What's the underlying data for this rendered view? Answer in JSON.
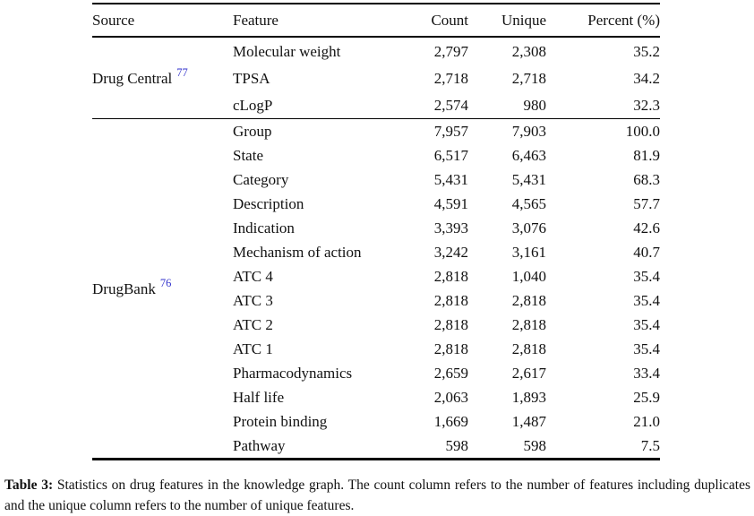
{
  "colors": {
    "background": "#ffffff",
    "text": "#111111",
    "rule": "#000000",
    "citation_link": "#3333cc"
  },
  "table": {
    "headers": {
      "source": "Source",
      "feature": "Feature",
      "count": "Count",
      "unique": "Unique",
      "percent": "Percent (%)"
    },
    "groups": [
      {
        "source": "Drug Central",
        "ref": "77",
        "rows": [
          {
            "feature": "Molecular weight",
            "count": "2,797",
            "unique": "2,308",
            "percent": "35.2"
          },
          {
            "feature": "TPSA",
            "count": "2,718",
            "unique": "2,718",
            "percent": "34.2"
          },
          {
            "feature": "cLogP",
            "count": "2,574",
            "unique": "980",
            "percent": "32.3"
          }
        ]
      },
      {
        "source": "DrugBank",
        "ref": "76",
        "rows": [
          {
            "feature": "Group",
            "count": "7,957",
            "unique": "7,903",
            "percent": "100.0"
          },
          {
            "feature": "State",
            "count": "6,517",
            "unique": "6,463",
            "percent": "81.9"
          },
          {
            "feature": "Category",
            "count": "5,431",
            "unique": "5,431",
            "percent": "68.3"
          },
          {
            "feature": "Description",
            "count": "4,591",
            "unique": "4,565",
            "percent": "57.7"
          },
          {
            "feature": "Indication",
            "count": "3,393",
            "unique": "3,076",
            "percent": "42.6"
          },
          {
            "feature": "Mechanism of action",
            "count": "3,242",
            "unique": "3,161",
            "percent": "40.7"
          },
          {
            "feature": "ATC 4",
            "count": "2,818",
            "unique": "1,040",
            "percent": "35.4"
          },
          {
            "feature": "ATC 3",
            "count": "2,818",
            "unique": "2,818",
            "percent": "35.4"
          },
          {
            "feature": "ATC 2",
            "count": "2,818",
            "unique": "2,818",
            "percent": "35.4"
          },
          {
            "feature": "ATC 1",
            "count": "2,818",
            "unique": "2,818",
            "percent": "35.4"
          },
          {
            "feature": "Pharmacodynamics",
            "count": "2,659",
            "unique": "2,617",
            "percent": "33.4"
          },
          {
            "feature": "Half life",
            "count": "2,063",
            "unique": "1,893",
            "percent": "25.9"
          },
          {
            "feature": "Protein binding",
            "count": "1,669",
            "unique": "1,487",
            "percent": "21.0"
          },
          {
            "feature": "Pathway",
            "count": "598",
            "unique": "598",
            "percent": "7.5"
          }
        ]
      }
    ]
  },
  "caption": {
    "label": "Table 3:",
    "text": "Statistics on drug features in the knowledge graph. The count column refers to the number of features including duplicates and the unique column refers to the number of unique features."
  }
}
